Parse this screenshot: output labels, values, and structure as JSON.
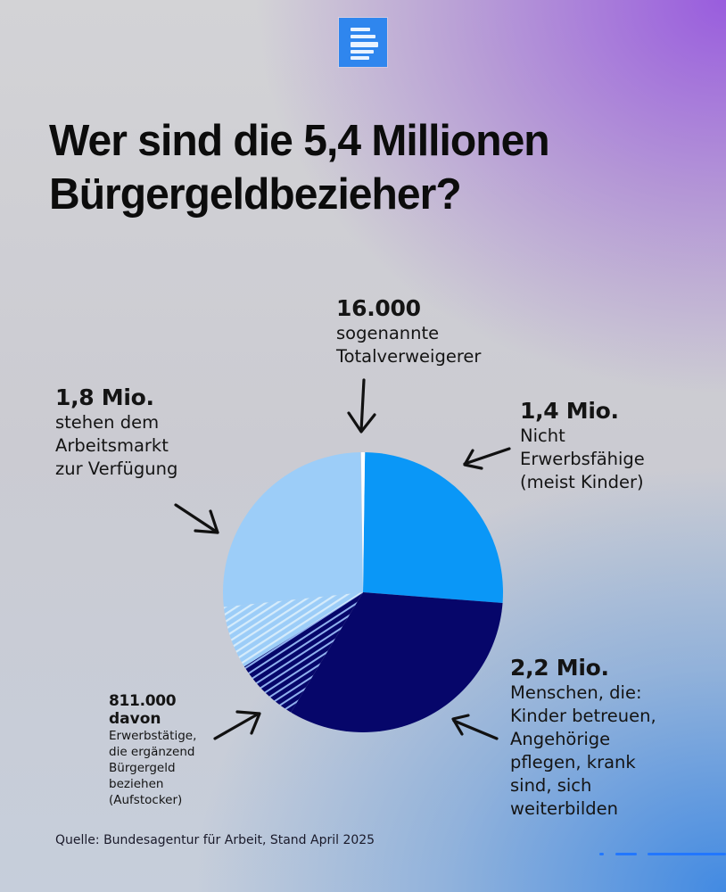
{
  "header": {
    "logo_icon": "text-lines-logo-icon",
    "title_line1": "Wer sind die 5,4 Millionen",
    "title_line2": "Bürgergeldbezieher?"
  },
  "labels": {
    "total_refusers": {
      "value": "16.000",
      "text": "sogenannte\nTotalverweigerer",
      "arrow": "arrow-down-icon"
    },
    "labor_market": {
      "value": "1,8 Mio.",
      "text": "stehen dem\nArbeitsmarkt\nzur Verfügung",
      "arrow": "arrow-down-right-icon"
    },
    "not_employable": {
      "value": "1,4 Mio.",
      "text": "Nicht\nErwerbsfähige\n(meist Kinder)",
      "arrow": "arrow-down-left-icon"
    },
    "other_reasons": {
      "value": "2,2 Mio.",
      "text": "Menschen, die:\nKinder betreuen,\nAngehörige\npflegen, krank\nsind, sich\nweiterbilden",
      "arrow": "arrow-up-left-icon"
    },
    "top_up": {
      "value": "811.000",
      "sub": "davon",
      "text": "Erwerbstätige,\ndie ergänzend\nBürgergeld\nbeziehen\n(Aufstocker)",
      "arrow": "arrow-up-right-icon"
    }
  },
  "footer": {
    "source": "Quelle: Bundesagentur für Arbeit, Stand April 2025"
  },
  "colors": {
    "logo_blue": "#2f86ee",
    "bright_blue": "#0a97f7",
    "navy": "#06066a",
    "light_blue": "#9ccdf8",
    "hatch_light": "#d6ecfb",
    "hatch_on_navy": "#8fb0ee",
    "separator": "#ffffff"
  },
  "chart_data": {
    "type": "pie",
    "title": "Wer sind die 5,4 Millionen Bürgergeldbezieher?",
    "total": 5400000,
    "unit": "Personen",
    "slices": [
      {
        "label": "sogenannte Totalverweigerer",
        "value": 16000,
        "display": "16.000",
        "color": "#ffffff",
        "start_deg": 359,
        "end_deg": 360.8
      },
      {
        "label": "Nicht Erwerbsfähige (meist Kinder)",
        "value": 1400000,
        "display": "1,4 Mio.",
        "color": "#0a97f7",
        "start_deg": 0.8,
        "end_deg": 94.4
      },
      {
        "label": "Menschen, die: Kinder betreuen, Angehörige pflegen, krank sind, sich weiterbilden",
        "value": 2200000,
        "display": "2,2 Mio.",
        "color": "#06066a",
        "start_deg": 94.4,
        "end_deg": 238,
        "hatched_from_deg": 211
      },
      {
        "label": "stehen dem Arbeitsmarkt zur Verfügung",
        "value": 1800000,
        "display": "1,8 Mio.",
        "color": "#9ccdf8",
        "start_deg": 238,
        "end_deg": 359,
        "hatched_to_deg": 264
      }
    ],
    "sub_slice": {
      "label": "davon Erwerbstätige, die ergänzend Bürgergeld beziehen (Aufstocker)",
      "value": 811000,
      "display": "811.000",
      "spans_deg": [
        211,
        264
      ]
    },
    "source": "Quelle: Bundesagentur für Arbeit, Stand April 2025",
    "center": [
      407,
      664
    ],
    "radius": 157
  }
}
